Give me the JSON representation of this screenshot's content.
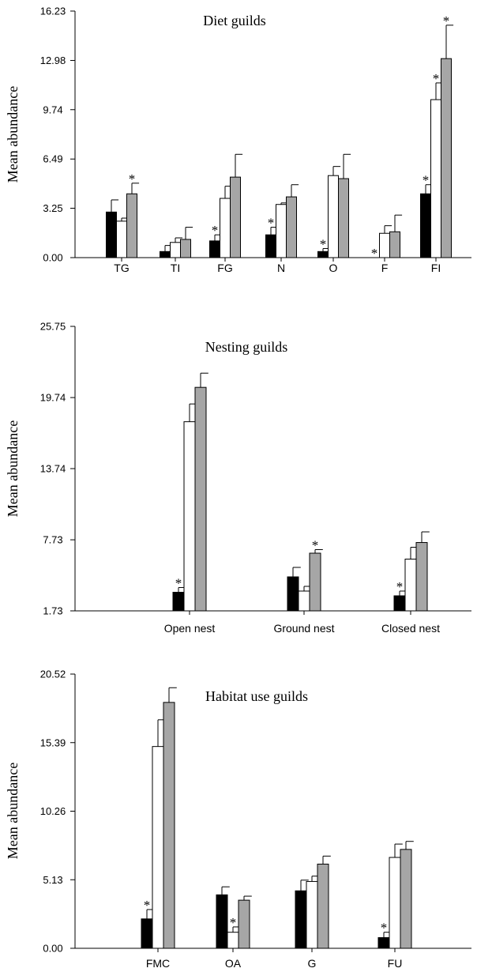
{
  "chart_data": [
    {
      "type": "bar",
      "title": "Diet guilds",
      "ylabel": "Mean abundance",
      "ylim": [
        0,
        16.23
      ],
      "yticks": [
        "0.00",
        "3.25",
        "6.49",
        "9.74",
        "12.98",
        "16.23"
      ],
      "categories": [
        "TG",
        "TI",
        "FG",
        "N",
        "O",
        "F",
        "FI"
      ],
      "series": [
        {
          "color": "#000000",
          "values": [
            3.0,
            0.4,
            1.1,
            1.5,
            0.4,
            0.0,
            4.2
          ],
          "errors": [
            0.8,
            0.4,
            0.4,
            0.5,
            0.2,
            0.0,
            0.6
          ],
          "significant": [
            false,
            false,
            true,
            true,
            true,
            true,
            true
          ]
        },
        {
          "color": "#ffffff",
          "values": [
            2.4,
            1.0,
            3.9,
            3.5,
            5.4,
            1.6,
            10.4
          ],
          "errors": [
            0.2,
            0.3,
            0.8,
            0.1,
            0.6,
            0.5,
            1.1
          ],
          "significant": [
            false,
            false,
            false,
            false,
            false,
            false,
            true
          ]
        },
        {
          "color": "#a6a6a6",
          "values": [
            4.2,
            1.2,
            5.3,
            4.0,
            5.2,
            1.7,
            13.1
          ],
          "errors": [
            0.7,
            0.8,
            1.5,
            0.8,
            1.6,
            1.1,
            2.2
          ],
          "significant": [
            true,
            false,
            false,
            false,
            false,
            false,
            true
          ]
        }
      ]
    },
    {
      "type": "bar",
      "title": "Nesting guilds",
      "ylabel": "Mean abundance",
      "ylim": [
        1.73,
        25.75
      ],
      "yticks": [
        "1.73",
        "7.73",
        "13.74",
        "19.74",
        "25.75"
      ],
      "categories": [
        "Open nest",
        "Ground nest",
        "Closed nest"
      ],
      "series": [
        {
          "color": "#000000",
          "values": [
            3.3,
            4.6,
            3.0
          ],
          "errors": [
            0.4,
            0.8,
            0.4
          ],
          "significant": [
            true,
            false,
            true
          ]
        },
        {
          "color": "#ffffff",
          "values": [
            17.7,
            3.4,
            6.1
          ],
          "errors": [
            1.5,
            0.4,
            1.0
          ],
          "significant": [
            false,
            false,
            false
          ]
        },
        {
          "color": "#a6a6a6",
          "values": [
            20.6,
            6.6,
            7.5
          ],
          "errors": [
            1.2,
            0.3,
            0.9
          ],
          "significant": [
            false,
            true,
            false
          ]
        }
      ]
    },
    {
      "type": "bar",
      "title": "Habitat use guilds",
      "ylabel": "Mean abundance",
      "ylim": [
        0,
        20.52
      ],
      "yticks": [
        "0.00",
        "5.13",
        "10.26",
        "15.39",
        "20.52"
      ],
      "categories": [
        "FMC",
        "OA",
        "G",
        "FU"
      ],
      "series": [
        {
          "color": "#000000",
          "values": [
            2.2,
            4.0,
            4.3,
            0.8
          ],
          "errors": [
            0.7,
            0.6,
            0.8,
            0.4
          ],
          "significant": [
            true,
            false,
            false,
            true
          ]
        },
        {
          "color": "#ffffff",
          "values": [
            15.1,
            1.2,
            5.0,
            6.8
          ],
          "errors": [
            2.0,
            0.4,
            0.4,
            1.0
          ],
          "significant": [
            false,
            true,
            false,
            false
          ]
        },
        {
          "color": "#a6a6a6",
          "values": [
            18.4,
            3.6,
            6.3,
            7.4
          ],
          "errors": [
            1.1,
            0.3,
            0.6,
            0.6
          ],
          "significant": [
            false,
            false,
            false,
            false
          ]
        }
      ]
    }
  ]
}
